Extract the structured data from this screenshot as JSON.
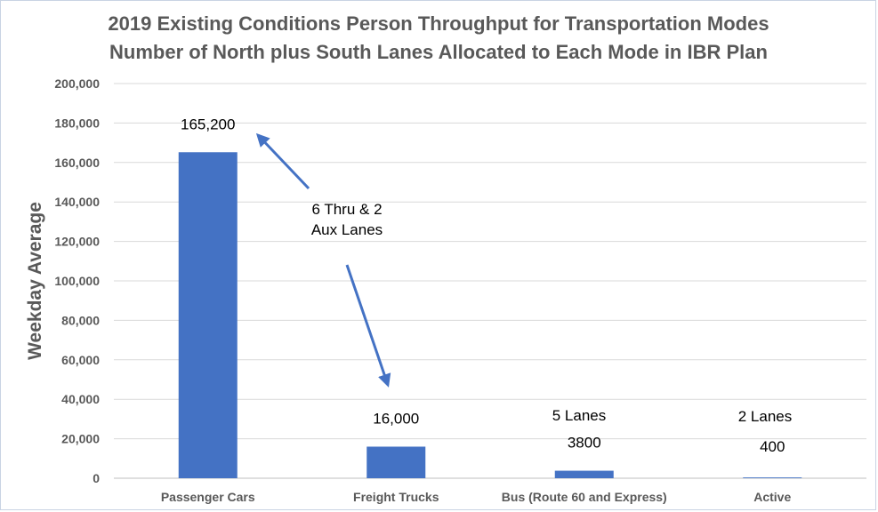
{
  "chart_data": {
    "type": "bar",
    "title": "2019 Existing Conditions Person Throughput for Transportation Modes",
    "subtitle": "Number of North plus South Lanes Allocated to Each Mode in IBR Plan",
    "xlabel": "",
    "ylabel": "Weekday Average",
    "categories": [
      "Passenger Cars",
      "Freight Trucks",
      "Bus (Route 60 and Express)",
      "Active"
    ],
    "values": [
      165200,
      16000,
      3800,
      400
    ],
    "data_labels": [
      "165,200",
      "16,000",
      "3800",
      "400"
    ],
    "ylim": [
      0,
      200000
    ],
    "yticks": [
      "0",
      "20,000",
      "40,000",
      "60,000",
      "80,000",
      "100,000",
      "120,000",
      "140,000",
      "160,000",
      "180,000",
      "200,000"
    ],
    "grid": true,
    "bar_color": "#4472c4",
    "annotations": {
      "thru_aux_line1": "6 Thru &  2",
      "thru_aux_line2": "Aux Lanes",
      "bus_lanes": "5 Lanes",
      "active_lanes": "2 Lanes"
    },
    "colors": {
      "grid": "#d9d9d9",
      "text": "#595959",
      "arrow": "#4472c4"
    }
  }
}
